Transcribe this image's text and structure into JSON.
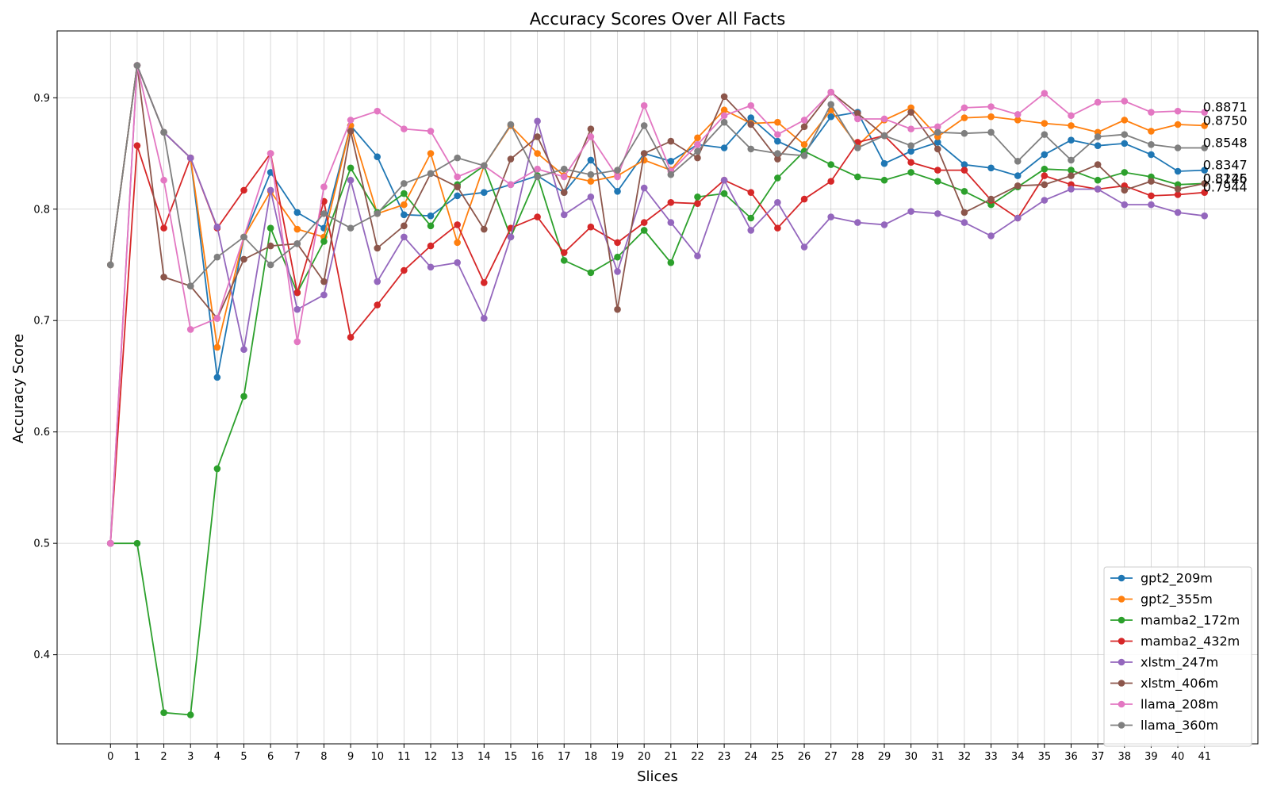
{
  "chart_data": {
    "type": "line",
    "title": "Accuracy Scores Over All Facts",
    "xlabel": "Slices",
    "ylabel": "Accuracy Score",
    "x": [
      0,
      1,
      2,
      3,
      4,
      5,
      6,
      7,
      8,
      9,
      10,
      11,
      12,
      13,
      14,
      15,
      16,
      17,
      18,
      19,
      20,
      21,
      22,
      23,
      24,
      25,
      26,
      27,
      28,
      29,
      30,
      31,
      32,
      33,
      34,
      35,
      36,
      37,
      38,
      39,
      40,
      41
    ],
    "xlim": [
      -2,
      43
    ],
    "ylim": [
      0.32,
      0.96
    ],
    "yticks": [
      0.4,
      0.5,
      0.6,
      0.7,
      0.8,
      0.9
    ],
    "ytick_labels": [
      "0.4",
      "0.5",
      "0.6",
      "0.7",
      "0.8",
      "0.9"
    ],
    "grid": true,
    "legend_position": "bottom-right",
    "end_labels": [
      "0.8871",
      "0.8750",
      "0.8548",
      "0.8347",
      "0.8226",
      "0.8145",
      "0.7944"
    ],
    "series": [
      {
        "name": "gpt2_209m",
        "color": "#1f77b4",
        "values": [
          0.75,
          0.929,
          0.869,
          0.846,
          0.649,
          0.775,
          0.833,
          0.797,
          0.783,
          0.875,
          0.847,
          0.795,
          0.794,
          0.812,
          0.815,
          0.822,
          0.83,
          0.815,
          0.844,
          0.816,
          0.85,
          0.843,
          0.858,
          0.855,
          0.882,
          0.861,
          0.85,
          0.883,
          0.887,
          0.841,
          0.852,
          0.86,
          0.84,
          0.837,
          0.83,
          0.849,
          0.862,
          0.857,
          0.859,
          0.849,
          0.834,
          0.835
        ]
      },
      {
        "name": "gpt2_355m",
        "color": "#ff7f0e",
        "values": [
          0.75,
          0.929,
          0.869,
          0.846,
          0.676,
          0.775,
          0.816,
          0.782,
          0.775,
          0.875,
          0.796,
          0.804,
          0.85,
          0.77,
          0.839,
          0.875,
          0.85,
          0.83,
          0.825,
          0.83,
          0.844,
          0.835,
          0.864,
          0.889,
          0.877,
          0.878,
          0.858,
          0.889,
          0.857,
          0.88,
          0.891,
          0.865,
          0.882,
          0.883,
          0.88,
          0.877,
          0.875,
          0.869,
          0.88,
          0.87,
          0.876,
          0.875
        ]
      },
      {
        "name": "mamba2_172m",
        "color": "#2ca02c",
        "values": [
          0.5,
          0.5,
          0.348,
          0.346,
          0.567,
          0.632,
          0.783,
          0.725,
          0.771,
          0.837,
          0.797,
          0.814,
          0.785,
          0.822,
          0.839,
          0.775,
          0.83,
          0.754,
          0.743,
          0.757,
          0.781,
          0.752,
          0.811,
          0.814,
          0.792,
          0.828,
          0.852,
          0.84,
          0.829,
          0.826,
          0.833,
          0.825,
          0.816,
          0.804,
          0.82,
          0.836,
          0.835,
          0.826,
          0.833,
          0.829,
          0.822,
          0.823
        ]
      },
      {
        "name": "mamba2_432m",
        "color": "#d62728",
        "values": [
          0.5,
          0.857,
          0.783,
          0.846,
          0.783,
          0.817,
          0.85,
          0.725,
          0.807,
          0.685,
          0.714,
          0.745,
          0.767,
          0.786,
          0.734,
          0.783,
          0.793,
          0.761,
          0.784,
          0.77,
          0.788,
          0.806,
          0.805,
          0.826,
          0.815,
          0.783,
          0.809,
          0.825,
          0.86,
          0.866,
          0.842,
          0.835,
          0.835,
          0.808,
          0.792,
          0.83,
          0.822,
          0.818,
          0.821,
          0.812,
          0.813,
          0.815
        ]
      },
      {
        "name": "xlstm_247m",
        "color": "#9467bd",
        "values": [
          0.5,
          0.929,
          0.869,
          0.846,
          0.784,
          0.674,
          0.817,
          0.71,
          0.723,
          0.826,
          0.735,
          0.775,
          0.748,
          0.752,
          0.702,
          0.775,
          0.879,
          0.795,
          0.811,
          0.744,
          0.819,
          0.788,
          0.758,
          0.826,
          0.781,
          0.806,
          0.766,
          0.793,
          0.788,
          0.786,
          0.798,
          0.796,
          0.788,
          0.776,
          0.792,
          0.808,
          0.818,
          0.818,
          0.804,
          0.804,
          0.797,
          0.794
        ]
      },
      {
        "name": "xlstm_406m",
        "color": "#8c564b",
        "values": [
          0.75,
          0.929,
          0.739,
          0.731,
          0.702,
          0.755,
          0.767,
          0.769,
          0.735,
          0.87,
          0.765,
          0.785,
          0.832,
          0.82,
          0.782,
          0.845,
          0.865,
          0.815,
          0.872,
          0.71,
          0.85,
          0.861,
          0.846,
          0.901,
          0.876,
          0.845,
          0.874,
          0.905,
          0.886,
          0.866,
          0.887,
          0.854,
          0.797,
          0.809,
          0.821,
          0.822,
          0.83,
          0.84,
          0.817,
          0.825,
          0.818,
          0.823
        ]
      },
      {
        "name": "llama_208m",
        "color": "#e377c2",
        "values": [
          0.5,
          0.929,
          0.826,
          0.692,
          0.702,
          0.775,
          0.85,
          0.681,
          0.82,
          0.88,
          0.888,
          0.872,
          0.87,
          0.829,
          0.839,
          0.822,
          0.836,
          0.829,
          0.865,
          0.829,
          0.893,
          0.834,
          0.858,
          0.884,
          0.893,
          0.867,
          0.88,
          0.905,
          0.881,
          0.881,
          0.872,
          0.874,
          0.891,
          0.892,
          0.885,
          0.904,
          0.884,
          0.896,
          0.897,
          0.887,
          0.888,
          0.887
        ]
      },
      {
        "name": "llama_360m",
        "color": "#7f7f7f",
        "values": [
          0.75,
          0.929,
          0.869,
          0.731,
          0.757,
          0.775,
          0.75,
          0.769,
          0.796,
          0.783,
          0.796,
          0.823,
          0.832,
          0.846,
          0.839,
          0.876,
          0.829,
          0.836,
          0.831,
          0.835,
          0.875,
          0.831,
          0.852,
          0.878,
          0.854,
          0.85,
          0.848,
          0.894,
          0.855,
          0.866,
          0.857,
          0.869,
          0.868,
          0.869,
          0.843,
          0.867,
          0.844,
          0.865,
          0.867,
          0.858,
          0.855,
          0.855
        ]
      }
    ]
  }
}
